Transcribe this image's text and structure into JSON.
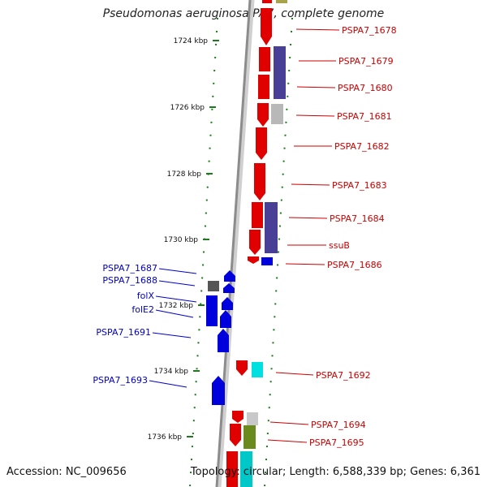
{
  "title": "Pseudomonas aeruginosa PA7, complete genome",
  "footer": {
    "accession": "Accession: NC_009656",
    "summary": "Topology: circular; Length: 6,588,339 bp; Genes: 6,361"
  },
  "colors": {
    "forward_label": "#cc0000",
    "reverse_label": "#0000cc",
    "tick": "#1f7a1f",
    "backbone": "#8c8c8c"
  },
  "scale_ticks": [
    "1724 kbp",
    "1726 kbp",
    "1728 kbp",
    "1730 kbp",
    "1732 kbp",
    "1734 kbp",
    "1736 kbp"
  ],
  "forward_labels": [
    "PSPA7_1678",
    "PSPA7_1679",
    "PSPA7_1680",
    "PSPA7_1681",
    "PSPA7_1682",
    "PSPA7_1683",
    "PSPA7_1684",
    "ssuB",
    "PSPA7_1686",
    "PSPA7_1692",
    "PSPA7_1694",
    "PSPA7_1695"
  ],
  "reverse_labels": [
    "PSPA7_1687",
    "PSPA7_1688",
    "folX",
    "folE2",
    "PSPA7_1691",
    "PSPA7_1693"
  ]
}
